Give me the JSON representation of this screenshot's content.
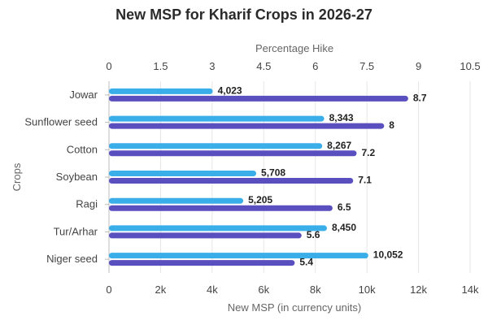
{
  "chart_data": {
    "type": "bar",
    "orientation": "horizontal",
    "title": "New MSP for Kharif Crops in 2026-27",
    "ylabel": "Crops",
    "xlabel_bottom": "New MSP (in currency units)",
    "xlabel_top": "Percentage Hike",
    "categories": [
      "Jowar",
      "Sunflower seed",
      "Cotton",
      "Soybean",
      "Ragi",
      "Tur/Arhar",
      "Niger seed"
    ],
    "bottom_axis": {
      "range": [
        0,
        14000
      ],
      "ticks": [
        0,
        2000,
        4000,
        6000,
        8000,
        10000,
        12000,
        14000
      ],
      "tick_labels": [
        "0",
        "2k",
        "4k",
        "6k",
        "8k",
        "10k",
        "12k",
        "14k"
      ]
    },
    "top_axis": {
      "range": [
        0,
        10.5
      ],
      "ticks": [
        0,
        1.5,
        3,
        4.5,
        6,
        7.5,
        9,
        10.5
      ],
      "tick_labels": [
        "0",
        "1.5",
        "3",
        "4.5",
        "6",
        "7.5",
        "9",
        "10.5"
      ]
    },
    "grid": true,
    "legend": "none",
    "series": [
      {
        "axis": "bottom",
        "color": "#3aaee8",
        "values": [
          4023,
          8343,
          8267,
          5708,
          5205,
          8450,
          10052
        ],
        "labels": [
          "4,023",
          "8,343",
          "8,267",
          "5,708",
          "5,205",
          "8,450",
          "10,052"
        ]
      },
      {
        "axis": "top",
        "color": "#5a4fbf",
        "values": [
          8.7,
          8,
          7.2,
          7.1,
          6.5,
          5.6,
          5.4
        ],
        "labels": [
          "8.7",
          "8",
          "7.2",
          "7.1",
          "6.5",
          "5.6",
          "5.4"
        ]
      }
    ]
  }
}
